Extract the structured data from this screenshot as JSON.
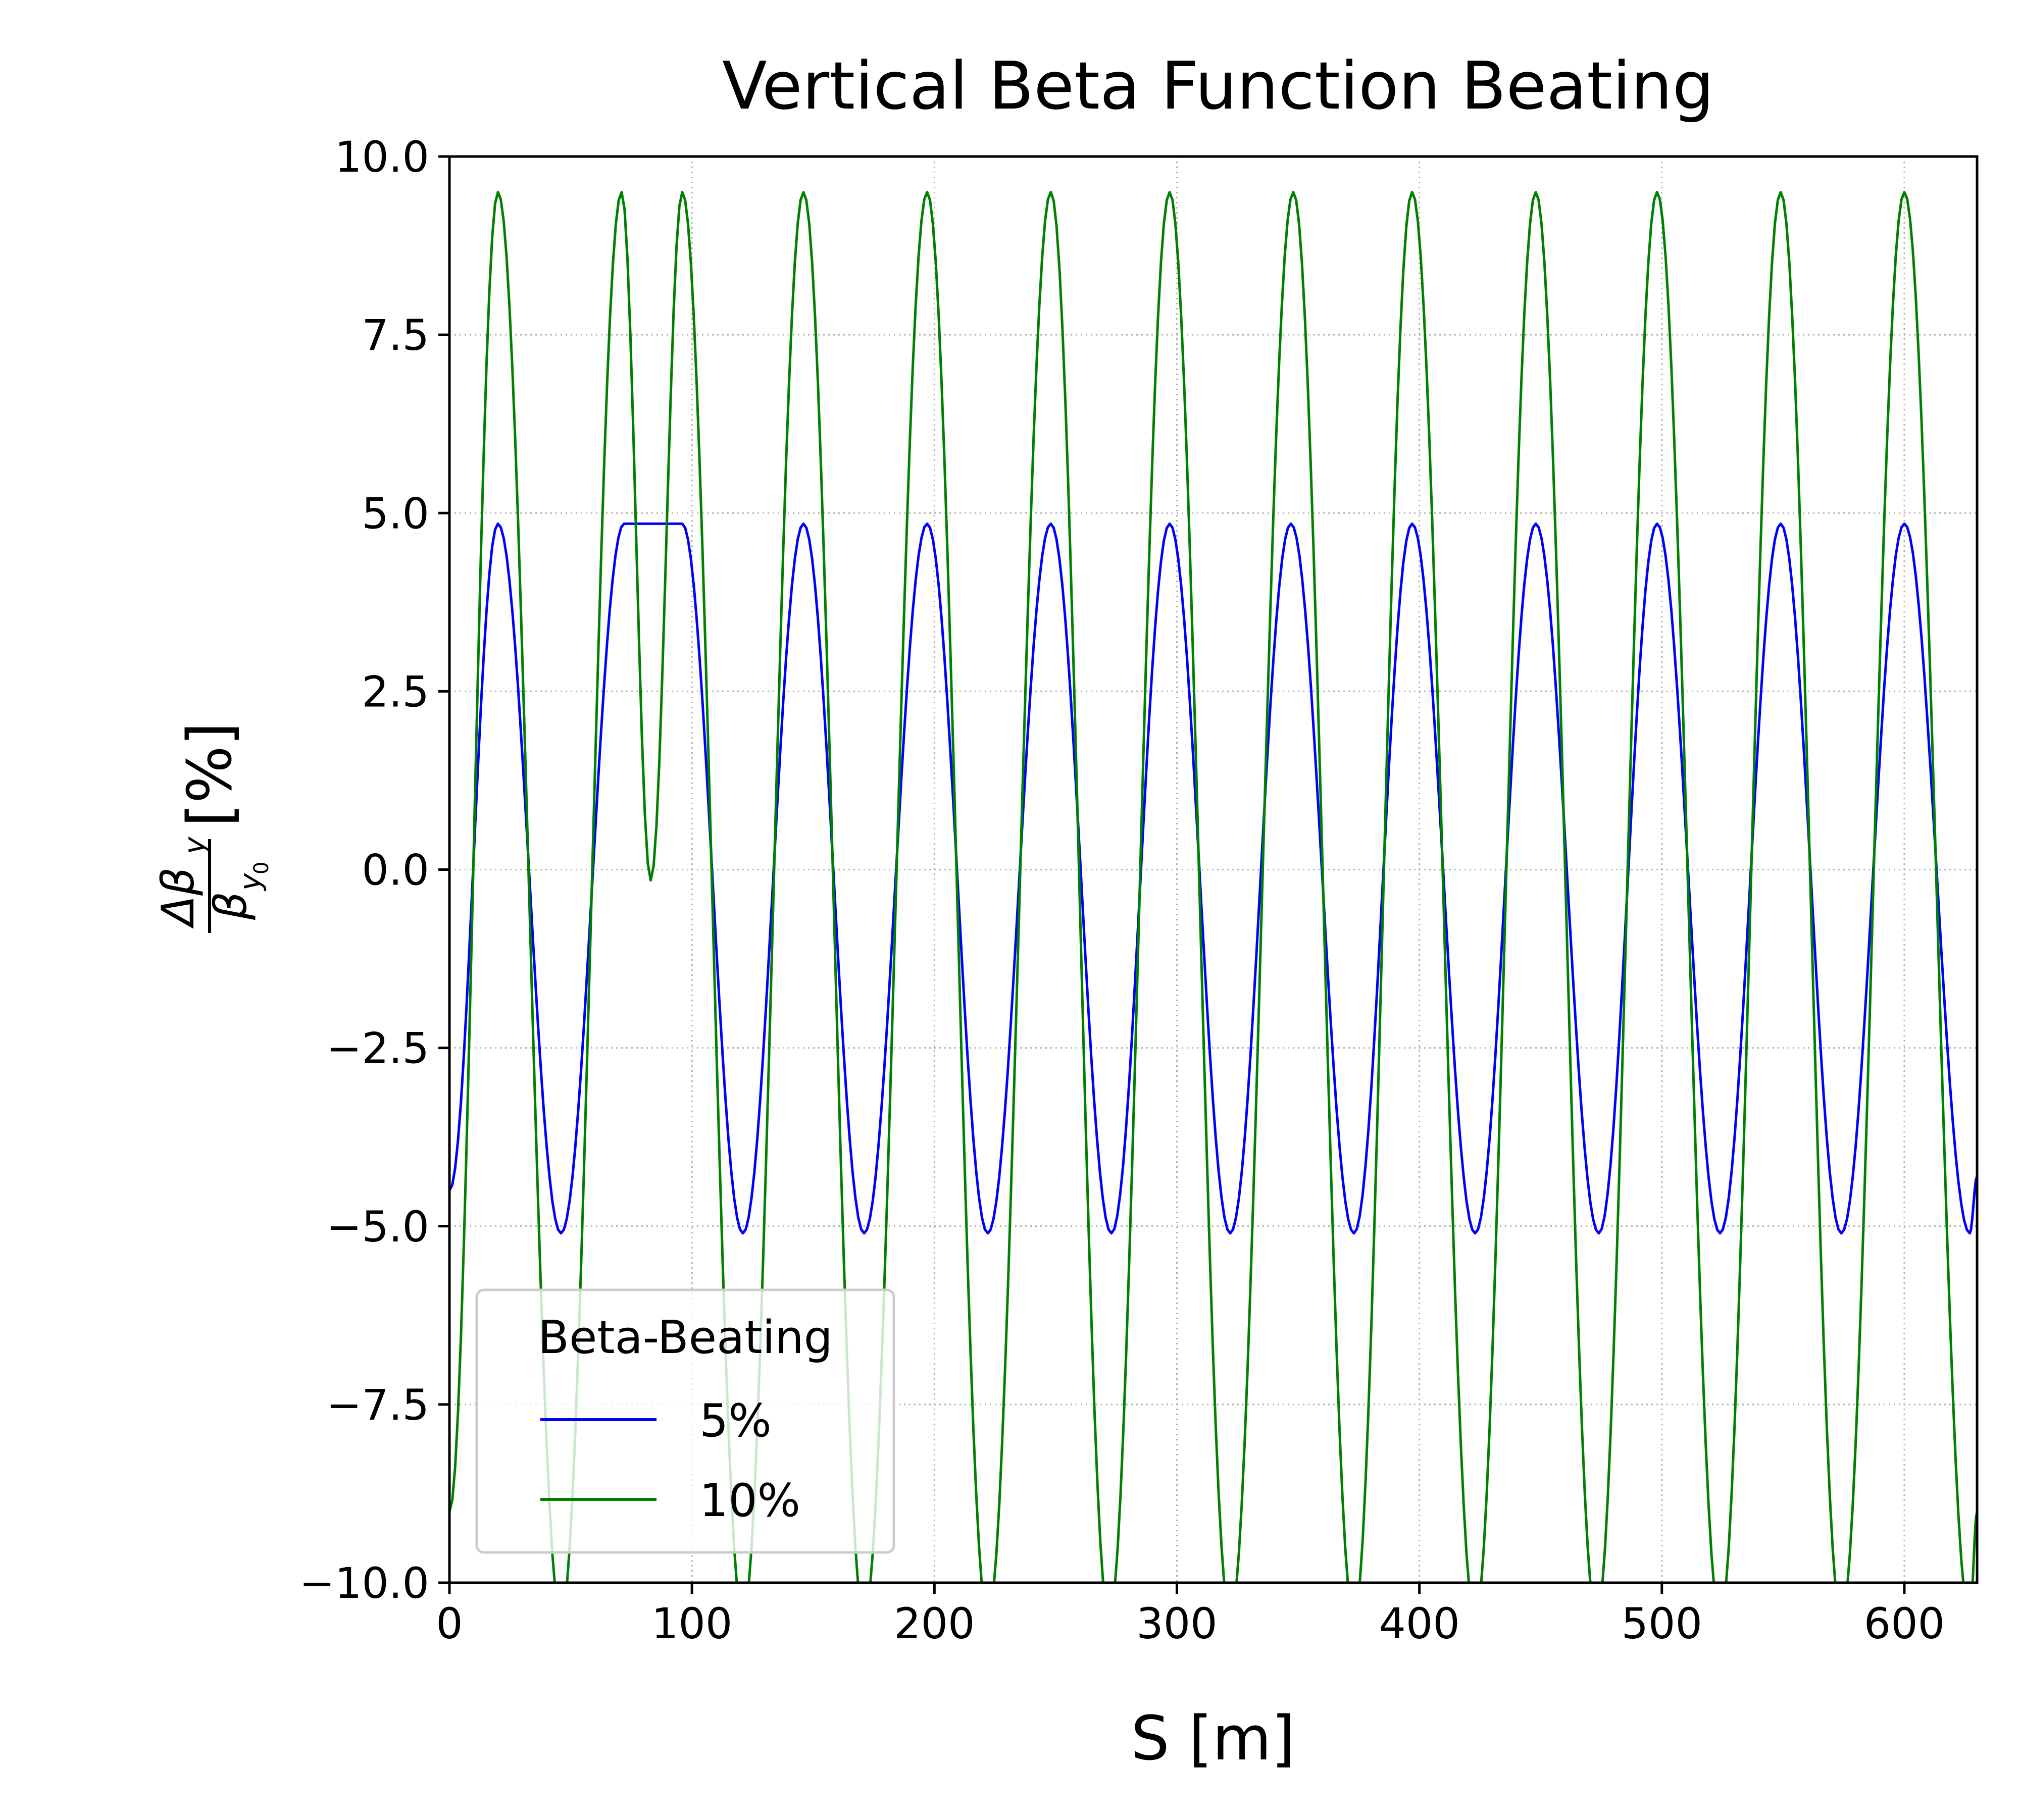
{
  "chart_data": {
    "type": "line",
    "title": "Vertical Beta Function Beating",
    "xlabel": "S [m]",
    "ylabel": {
      "numerator": "Δβ",
      "numerator_sub": "y",
      "denominator": "β",
      "denominator_sub": "y",
      "denominator_subsub": "0",
      "unit": "[%]"
    },
    "xlim": [
      0,
      630
    ],
    "ylim": [
      -10,
      10
    ],
    "xticks": [
      "0",
      "100",
      "200",
      "300",
      "400",
      "500",
      "600"
    ],
    "yticks": [
      "10.0",
      "7.5",
      "5.0",
      "2.5",
      "0.0",
      "−2.5",
      "−5.0",
      "−7.5",
      "−10.0"
    ],
    "grid": true,
    "legend": {
      "title": "Beta-Beating",
      "location": "lower-left"
    },
    "series": [
      {
        "name": "5%",
        "color": "#0000ff",
        "shape": "oscillation",
        "min": -5.1,
        "max": 4.85,
        "peaks_x": [
          20,
          72,
          96,
          146,
          197,
          248,
          297,
          347,
          397,
          448,
          498,
          549,
          600
        ],
        "troughs_x": [
          46,
          121,
          171,
          222,
          273,
          322,
          373,
          423,
          474,
          524,
          574,
          627
        ],
        "start": {
          "x": 0,
          "y": -4.5
        },
        "end": {
          "x": 630,
          "y": -4.3
        }
      },
      {
        "name": "10%",
        "color": "#008000",
        "shape": "oscillation",
        "min": -10.5,
        "max": 9.5,
        "peaks_x": [
          20,
          71,
          96,
          146,
          197,
          248,
          297,
          348,
          397,
          448,
          498,
          549,
          600
        ],
        "troughs_x": [
          46,
          121,
          171,
          222,
          272,
          322,
          373,
          423,
          473,
          524,
          574,
          627
        ],
        "special_points": [
          {
            "x": 83,
            "y": -0.15
          }
        ],
        "start": {
          "x": 0,
          "y": -9.0
        },
        "end": {
          "x": 630,
          "y": -9.0
        }
      }
    ]
  }
}
